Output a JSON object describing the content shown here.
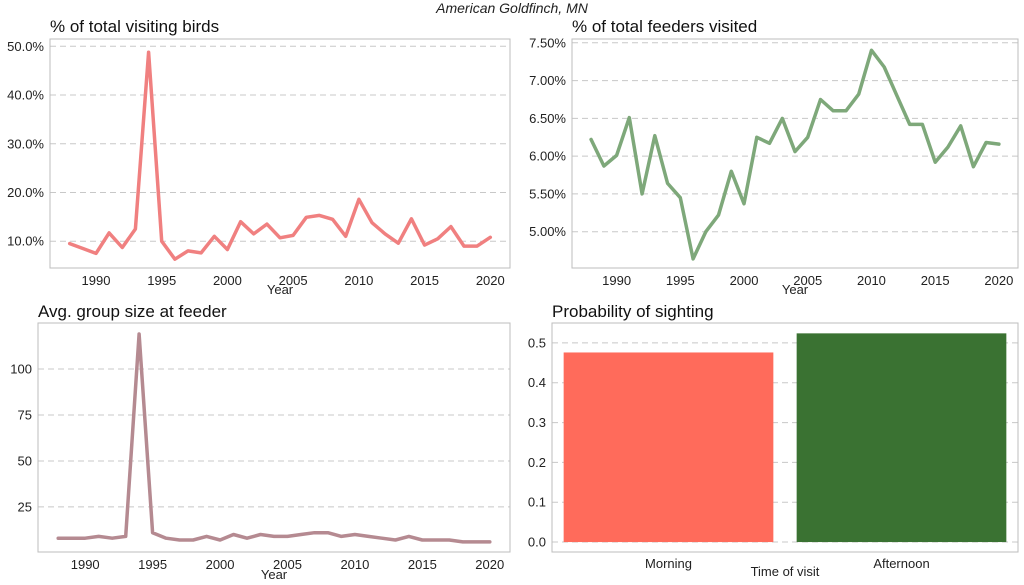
{
  "figure_title": "American Goldfinch, MN",
  "chart_data": [
    {
      "type": "line",
      "title": "% of total visiting birds",
      "xlabel": "Year",
      "ylabel": "",
      "color": "#f08080",
      "x": [
        1988,
        1989,
        1990,
        1991,
        1992,
        1993,
        1994,
        1995,
        1996,
        1997,
        1998,
        1999,
        2000,
        2001,
        2002,
        2003,
        2004,
        2005,
        2006,
        2007,
        2008,
        2009,
        2010,
        2011,
        2012,
        2013,
        2014,
        2015,
        2016,
        2017,
        2018,
        2019,
        2020
      ],
      "y": [
        9.5,
        8.5,
        7.5,
        11.7,
        8.7,
        12.5,
        48.8,
        10.0,
        6.3,
        8.0,
        7.6,
        11.0,
        8.3,
        14.0,
        11.5,
        13.5,
        10.7,
        11.2,
        14.9,
        15.3,
        14.5,
        11.0,
        18.6,
        13.8,
        11.5,
        9.6,
        14.6,
        9.2,
        10.5,
        13.0,
        9.0,
        9.0,
        10.8
      ],
      "xlim": [
        1986.5,
        2021.5
      ],
      "ylim": [
        4.5,
        51.5
      ],
      "xticks": [
        1990,
        1995,
        2000,
        2005,
        2010,
        2015,
        2020
      ],
      "yticks": [
        10,
        20,
        30,
        40,
        50
      ],
      "ytick_labels": [
        "10.0%",
        "20.0%",
        "30.0%",
        "40.0%",
        "50.0%"
      ],
      "grid": "horizontal dashed"
    },
    {
      "type": "line",
      "title": "% of total feeders visited",
      "xlabel": "Year",
      "ylabel": "",
      "color": "#7ea87a",
      "x": [
        1988,
        1989,
        1990,
        1991,
        1992,
        1993,
        1994,
        1995,
        1996,
        1997,
        1998,
        1999,
        2000,
        2001,
        2002,
        2003,
        2004,
        2005,
        2006,
        2007,
        2008,
        2009,
        2010,
        2011,
        2012,
        2013,
        2014,
        2015,
        2016,
        2017,
        2018,
        2019,
        2020
      ],
      "y": [
        6.22,
        5.87,
        6.01,
        6.51,
        5.5,
        6.27,
        5.64,
        5.45,
        4.64,
        5.0,
        5.22,
        5.8,
        5.37,
        6.25,
        6.17,
        6.5,
        6.06,
        6.25,
        6.75,
        6.6,
        6.6,
        6.82,
        7.4,
        7.18,
        6.8,
        6.42,
        6.42,
        5.92,
        6.12,
        6.4,
        5.86,
        6.18,
        6.16
      ],
      "xlim": [
        1986.5,
        2021.5
      ],
      "ylim": [
        4.52,
        7.55
      ],
      "xticks": [
        1990,
        1995,
        2000,
        2005,
        2010,
        2015,
        2020
      ],
      "yticks": [
        5.0,
        5.5,
        6.0,
        6.5,
        7.0,
        7.5
      ],
      "ytick_labels": [
        "5.00%",
        "5.50%",
        "6.00%",
        "6.50%",
        "7.00%",
        "7.50%"
      ],
      "grid": "horizontal dashed"
    },
    {
      "type": "line",
      "title": "Avg. group size at feeder",
      "xlabel": "Year",
      "ylabel": "",
      "color": "#b58a91",
      "x": [
        1988,
        1989,
        1990,
        1991,
        1992,
        1993,
        1994,
        1995,
        1996,
        1997,
        1998,
        1999,
        2000,
        2001,
        2002,
        2003,
        2004,
        2005,
        2006,
        2007,
        2008,
        2009,
        2010,
        2011,
        2012,
        2013,
        2014,
        2015,
        2016,
        2017,
        2018,
        2019,
        2020
      ],
      "y": [
        8,
        8,
        8,
        9,
        8,
        9,
        119,
        11,
        8,
        7,
        7,
        9,
        7,
        10,
        8,
        10,
        9,
        9,
        10,
        11,
        11,
        9,
        10,
        9,
        8,
        7,
        9,
        7,
        7,
        7,
        6,
        6,
        6
      ],
      "xlim": [
        1986.5,
        2021.5
      ],
      "ylim": [
        0.5,
        125
      ],
      "xticks": [
        1990,
        1995,
        2000,
        2005,
        2010,
        2015,
        2020
      ],
      "yticks": [
        25,
        50,
        75,
        100
      ],
      "ytick_labels": [
        "25",
        "50",
        "75",
        "100"
      ],
      "grid": "horizontal dashed"
    },
    {
      "type": "bar",
      "title": "Probability of sighting",
      "xlabel": "Time of visit",
      "ylabel": "",
      "categories": [
        "Morning",
        "Afternoon"
      ],
      "values": [
        0.476,
        0.524
      ],
      "colors": [
        "#ff6b5b",
        "#3a7232"
      ],
      "ylim": [
        -0.025,
        0.55
      ],
      "yticks": [
        0.0,
        0.1,
        0.2,
        0.3,
        0.4,
        0.5
      ],
      "ytick_labels": [
        "0.0",
        "0.1",
        "0.2",
        "0.3",
        "0.4",
        "0.5"
      ],
      "grid": "horizontal dashed"
    }
  ]
}
